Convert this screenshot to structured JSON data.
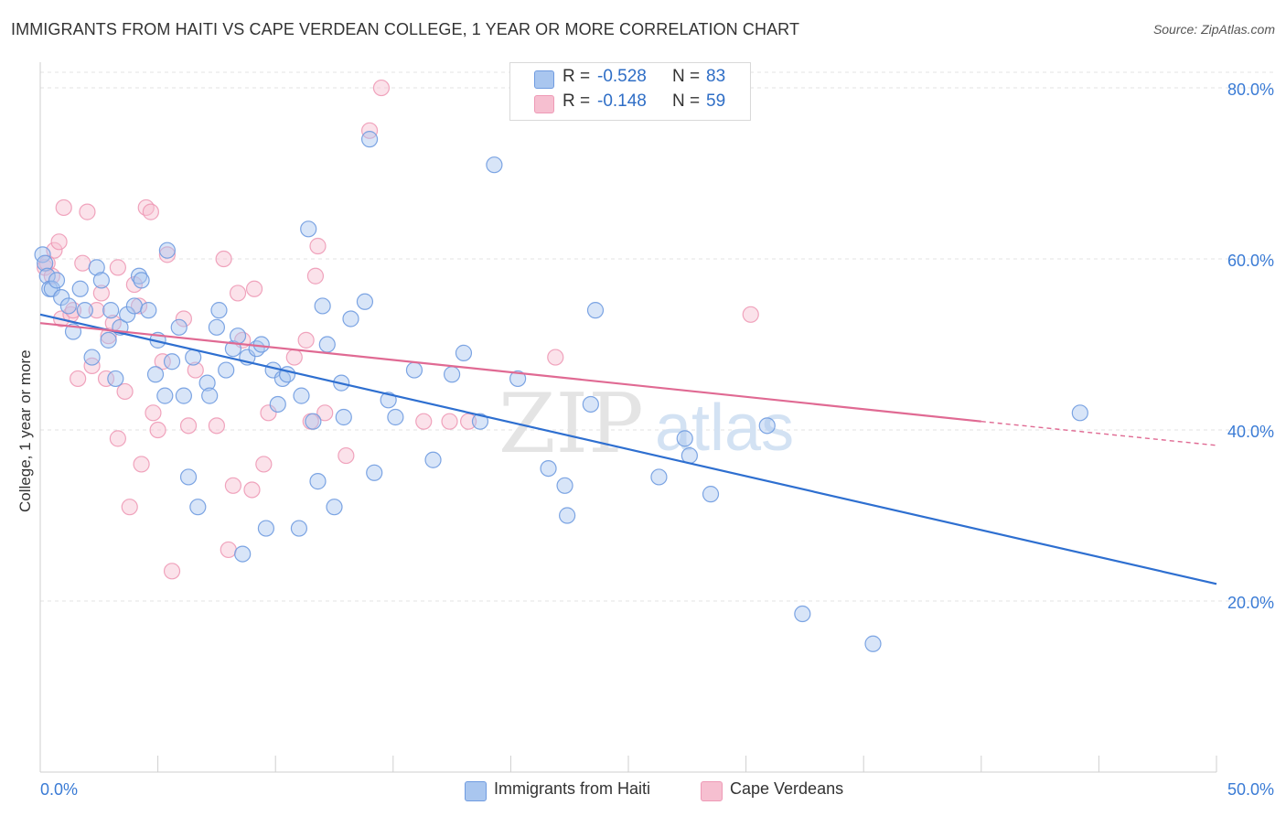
{
  "header": {
    "title": "IMMIGRANTS FROM HAITI VS CAPE VERDEAN COLLEGE, 1 YEAR OR MORE CORRELATION CHART",
    "source": "Source: ZipAtlas.com"
  },
  "legend": {
    "rows": [
      {
        "r_label": "R = ",
        "r_value": "-0.528",
        "n_label": "N = ",
        "n_value": "83"
      },
      {
        "r_label": "R = ",
        "r_value": "-0.148",
        "n_label": "N = ",
        "n_value": "59"
      }
    ]
  },
  "bottom_legend": {
    "items": [
      "Immigrants from Haiti",
      "Cape Verdeans"
    ]
  },
  "watermark": {
    "part1": "ZIP",
    "part2": "atlas"
  },
  "colors": {
    "blue_fill": "#a9c6ef",
    "blue_stroke": "#6f9be0",
    "blue_line": "#2e6fd0",
    "pink_fill": "#f6bfd0",
    "pink_stroke": "#ee9ab6",
    "pink_line": "#e06a93",
    "axis_text": "#3a7bd5",
    "grid": "#e3e3e3"
  },
  "chart_data": {
    "type": "scatter",
    "title": "IMMIGRANTS FROM HAITI VS CAPE VERDEAN COLLEGE, 1 YEAR OR MORE CORRELATION CHART",
    "xlabel": "",
    "ylabel": "College, 1 year or more",
    "xlim": [
      0,
      50
    ],
    "ylim": [
      0,
      83
    ],
    "x_tick_labels": [
      "0.0%",
      "50.0%"
    ],
    "y_ticks": [
      20,
      40,
      60,
      80
    ],
    "y_tick_labels": [
      "20.0%",
      "40.0%",
      "60.0%",
      "80.0%"
    ],
    "grid": true,
    "legend_position": "top-center",
    "series": [
      {
        "name": "Immigrants from Haiti",
        "r": -0.528,
        "n": 83,
        "trend": {
          "x": [
            0,
            50
          ],
          "y": [
            53.5,
            22.0
          ]
        },
        "points": [
          [
            0.1,
            60.5
          ],
          [
            0.2,
            59.5
          ],
          [
            0.3,
            58.0
          ],
          [
            0.4,
            56.5
          ],
          [
            0.5,
            56.5
          ],
          [
            0.7,
            57.5
          ],
          [
            0.9,
            55.5
          ],
          [
            1.2,
            54.5
          ],
          [
            1.4,
            51.5
          ],
          [
            1.7,
            56.5
          ],
          [
            1.9,
            54.0
          ],
          [
            2.2,
            48.5
          ],
          [
            2.4,
            59.0
          ],
          [
            2.6,
            57.5
          ],
          [
            2.9,
            50.5
          ],
          [
            3.0,
            54.0
          ],
          [
            3.2,
            46.0
          ],
          [
            3.4,
            52.0
          ],
          [
            3.7,
            53.5
          ],
          [
            4.0,
            54.5
          ],
          [
            4.2,
            58.0
          ],
          [
            4.3,
            57.5
          ],
          [
            4.6,
            54.0
          ],
          [
            4.9,
            46.5
          ],
          [
            5.0,
            50.5
          ],
          [
            5.3,
            44.0
          ],
          [
            5.4,
            61.0
          ],
          [
            5.6,
            48.0
          ],
          [
            5.9,
            52.0
          ],
          [
            6.1,
            44.0
          ],
          [
            6.3,
            34.5
          ],
          [
            6.5,
            48.5
          ],
          [
            6.7,
            31.0
          ],
          [
            7.1,
            45.5
          ],
          [
            7.2,
            44.0
          ],
          [
            7.5,
            52.0
          ],
          [
            7.6,
            54.0
          ],
          [
            7.9,
            47.0
          ],
          [
            8.2,
            49.5
          ],
          [
            8.4,
            51.0
          ],
          [
            8.6,
            25.5
          ],
          [
            8.8,
            48.5
          ],
          [
            9.2,
            49.5
          ],
          [
            9.4,
            50.0
          ],
          [
            9.6,
            28.5
          ],
          [
            9.9,
            47.0
          ],
          [
            10.1,
            43.0
          ],
          [
            10.3,
            46.0
          ],
          [
            10.5,
            46.5
          ],
          [
            11.0,
            28.5
          ],
          [
            11.1,
            44.0
          ],
          [
            11.4,
            63.5
          ],
          [
            11.6,
            41.0
          ],
          [
            11.8,
            34.0
          ],
          [
            12.0,
            54.5
          ],
          [
            12.2,
            50.0
          ],
          [
            12.5,
            31.0
          ],
          [
            12.8,
            45.5
          ],
          [
            12.9,
            41.5
          ],
          [
            13.2,
            53.0
          ],
          [
            13.8,
            55.0
          ],
          [
            14.0,
            74.0
          ],
          [
            14.2,
            35.0
          ],
          [
            14.8,
            43.5
          ],
          [
            15.1,
            41.5
          ],
          [
            15.9,
            47.0
          ],
          [
            16.7,
            36.5
          ],
          [
            17.5,
            46.5
          ],
          [
            18.0,
            49.0
          ],
          [
            18.7,
            41.0
          ],
          [
            19.3,
            71.0
          ],
          [
            20.3,
            46.0
          ],
          [
            21.6,
            35.5
          ],
          [
            22.3,
            33.5
          ],
          [
            22.4,
            30.0
          ],
          [
            23.4,
            43.0
          ],
          [
            23.6,
            54.0
          ],
          [
            26.3,
            34.5
          ],
          [
            27.4,
            39.0
          ],
          [
            27.6,
            37.0
          ],
          [
            28.5,
            32.5
          ],
          [
            30.9,
            40.5
          ],
          [
            32.4,
            18.5
          ],
          [
            35.4,
            15.0
          ],
          [
            44.2,
            42.0
          ]
        ]
      },
      {
        "name": "Cape Verdeans",
        "r": -0.148,
        "n": 59,
        "trend": {
          "x": [
            0,
            40
          ],
          "y": [
            52.5,
            41.0
          ]
        },
        "trend_dashed": {
          "x": [
            40,
            50
          ],
          "y": [
            41.0,
            38.2
          ]
        },
        "points": [
          [
            0.2,
            59.0
          ],
          [
            0.3,
            59.5
          ],
          [
            0.5,
            58.0
          ],
          [
            0.6,
            61.0
          ],
          [
            0.8,
            62.0
          ],
          [
            0.9,
            53.0
          ],
          [
            1.0,
            66.0
          ],
          [
            1.3,
            53.5
          ],
          [
            1.4,
            54.0
          ],
          [
            1.6,
            46.0
          ],
          [
            1.8,
            59.5
          ],
          [
            2.0,
            65.5
          ],
          [
            2.2,
            47.5
          ],
          [
            2.4,
            54.0
          ],
          [
            2.6,
            56.0
          ],
          [
            2.8,
            46.0
          ],
          [
            2.9,
            51.0
          ],
          [
            3.1,
            52.5
          ],
          [
            3.3,
            59.0
          ],
          [
            3.3,
            39.0
          ],
          [
            3.6,
            44.5
          ],
          [
            3.8,
            31.0
          ],
          [
            4.0,
            57.0
          ],
          [
            4.2,
            54.5
          ],
          [
            4.3,
            36.0
          ],
          [
            4.5,
            66.0
          ],
          [
            4.7,
            65.5
          ],
          [
            4.8,
            42.0
          ],
          [
            5.0,
            40.0
          ],
          [
            5.2,
            48.0
          ],
          [
            5.4,
            60.5
          ],
          [
            5.6,
            23.5
          ],
          [
            6.1,
            53.0
          ],
          [
            6.3,
            40.5
          ],
          [
            6.6,
            47.0
          ],
          [
            7.5,
            40.5
          ],
          [
            7.8,
            60.0
          ],
          [
            8.0,
            26.0
          ],
          [
            8.2,
            33.5
          ],
          [
            8.4,
            56.0
          ],
          [
            8.6,
            50.5
          ],
          [
            9.0,
            33.0
          ],
          [
            9.1,
            56.5
          ],
          [
            9.5,
            36.0
          ],
          [
            9.7,
            42.0
          ],
          [
            10.8,
            48.5
          ],
          [
            11.3,
            50.5
          ],
          [
            11.5,
            41.0
          ],
          [
            11.7,
            58.0
          ],
          [
            11.8,
            61.5
          ],
          [
            12.1,
            42.0
          ],
          [
            13.0,
            37.0
          ],
          [
            14.0,
            75.0
          ],
          [
            14.5,
            80.0
          ],
          [
            16.3,
            41.0
          ],
          [
            17.4,
            41.0
          ],
          [
            18.2,
            41.0
          ],
          [
            21.9,
            48.5
          ],
          [
            30.2,
            53.5
          ]
        ]
      }
    ]
  }
}
